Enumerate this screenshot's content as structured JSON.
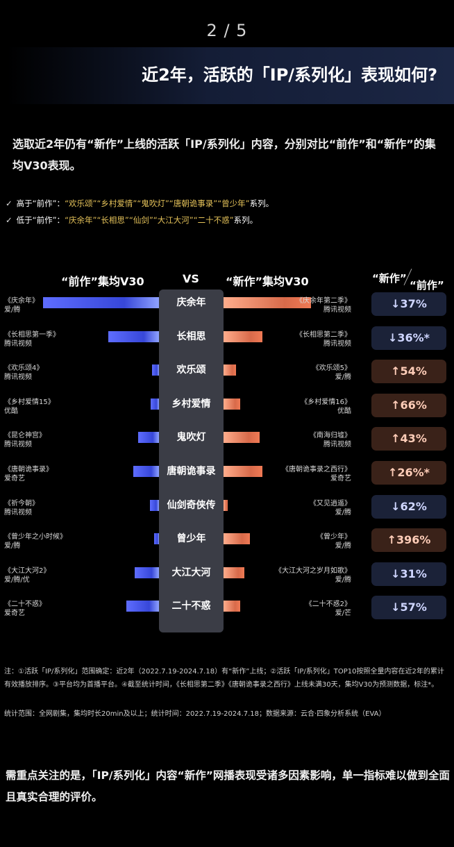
{
  "page_number": "2 / 5",
  "title": "近2年，活跃的「IP/系列化」表现如何?",
  "intro": "选取近2年仍有“新作”上线的活跃「IP/系列化」内容，分别对比“前作”和“新作”的集均V30表现。",
  "bullets": [
    {
      "mark": "✓",
      "prefix": "高于“前作”：",
      "items": "“欢乐颂”“乡村爱情”“鬼吹灯”“唐朝诡事录”“曾少年”",
      "suffix": "系列。"
    },
    {
      "mark": "✓",
      "prefix": "低于“前作”：",
      "items": "“庆余年”“长相思”“仙剑”“大江大河”“二十不惑”",
      "suffix": "系列。"
    }
  ],
  "headers": {
    "left": "“前作”集均V30",
    "vs": "VS",
    "right": "“新作”集均V30",
    "ratio_top": "“新作”",
    "ratio_bottom": "“前作”"
  },
  "colors": {
    "prev_bar": "#4a5cf0",
    "new_bar": "#e8815e",
    "down_badge": "#1b2238",
    "up_badge": "#3a2219"
  },
  "chart_data": {
    "type": "bar",
    "categories": [
      "庆余年",
      "长相思",
      "欢乐颂",
      "乡村爱情",
      "鬼吹灯",
      "唐朝诡事录",
      "仙剑奇侠传",
      "曾少年",
      "大江大河",
      "二十不惑"
    ],
    "series": [
      {
        "values": [
          100,
          44,
          6,
          7,
          18,
          22,
          8,
          4,
          21,
          28
        ]
      },
      {
        "values": [
          63,
          28,
          9,
          12,
          26,
          28,
          3,
          19,
          15,
          12
        ]
      }
    ],
    "prev_titles": [
      {
        "title": "《庆余年》",
        "platform": "爱/腾"
      },
      {
        "title": "《长相思第一季》",
        "platform": "腾讯视频"
      },
      {
        "title": "《欢乐颂4》",
        "platform": "腾讯视频"
      },
      {
        "title": "《乡村爱情15》",
        "platform": "优酷"
      },
      {
        "title": "《昆仑神宫》",
        "platform": "腾讯视频"
      },
      {
        "title": "《唐朝诡事录》",
        "platform": "爱奇艺"
      },
      {
        "title": "《祈今朝》",
        "platform": "腾讯视频"
      },
      {
        "title": "《曾少年之小时候》",
        "platform": "爱/腾"
      },
      {
        "title": "《大江大河2》",
        "platform": "爱/腾/优"
      },
      {
        "title": "《二十不惑》",
        "platform": "爱奇艺"
      }
    ],
    "new_titles": [
      {
        "title": "《庆余年第二季》",
        "platform": "腾讯视频"
      },
      {
        "title": "《长相思第二季》",
        "platform": "腾讯视频"
      },
      {
        "title": "《欢乐颂5》",
        "platform": "爱/腾"
      },
      {
        "title": "《乡村爱情16》",
        "platform": "优酷"
      },
      {
        "title": "《南海归墟》",
        "platform": "腾讯视频"
      },
      {
        "title": "《唐朝诡事录之西行》",
        "platform": "爱奇艺"
      },
      {
        "title": "《又见逍遥》",
        "platform": "爱/腾"
      },
      {
        "title": "《曾少年》",
        "platform": "爱/腾"
      },
      {
        "title": "《大江大河之岁月如歌》",
        "platform": "爱/腾"
      },
      {
        "title": "《二十不惑2》",
        "platform": "爱/芒"
      }
    ],
    "ratios": [
      {
        "label": "↓37%",
        "direction": "down"
      },
      {
        "label": "↓36%*",
        "direction": "down"
      },
      {
        "label": "↑54%",
        "direction": "up"
      },
      {
        "label": "↑66%",
        "direction": "up"
      },
      {
        "label": "↑43%",
        "direction": "up"
      },
      {
        "label": "↑26%*",
        "direction": "up"
      },
      {
        "label": "↓62%",
        "direction": "down"
      },
      {
        "label": "↑396%",
        "direction": "up"
      },
      {
        "label": "↓31%",
        "direction": "down"
      },
      {
        "label": "↓57%",
        "direction": "down"
      }
    ]
  },
  "notes": {
    "note1": "注：①活跃「IP/系列化」范围确定：近2年（2022.7.19-2024.7.18）有“新作”上线；②活跃「IP/系列化」TOP10按照全量内容在近2年的累计有效播放排序。③平台均为首播平台。④截至统计时间，《长相思第二季》《唐朝诡事录之西行》上线未满30天，集均V30为预测数据，标注*。",
    "note2": "统计范围：全网剧集，集均时长20min及以上；统计时间：2022.7.19-2024.7.18；数据来源：云合·四象分析系统（EVA）"
  },
  "conclusion": "需重点关注的是，「IP/系列化」内容“新作”网播表现受诸多因素影响，单一指标难以做到全面且真实合理的评价。"
}
